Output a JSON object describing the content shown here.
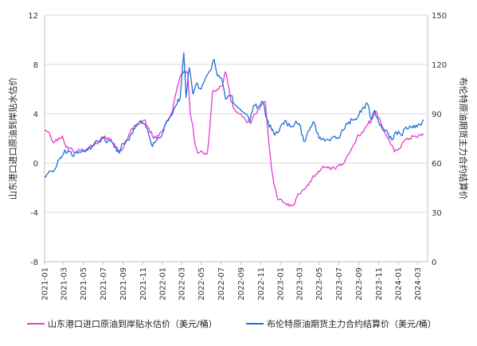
{
  "chart_data": {
    "type": "line",
    "title": "",
    "xlabel": "",
    "ylabel_left": "山东港口进口原油到岸贴水估价",
    "ylabel_right": "布伦特原油期货主力合约结算价",
    "x_tick_labels": [
      "2021-01",
      "2021-03",
      "2021-05",
      "2021-07",
      "2021-09",
      "2021-11",
      "2022-01",
      "2022-03",
      "2022-05",
      "2022-07",
      "2022-09",
      "2022-11",
      "2023-01",
      "2023-03",
      "2023-05",
      "2023-07",
      "2023-09",
      "2023-11",
      "2024-01",
      "2024-03"
    ],
    "ylim_left": [
      -8,
      12
    ],
    "yticks_left": [
      -8,
      -4,
      0,
      4,
      8,
      12
    ],
    "ylim_right": [
      0,
      150
    ],
    "yticks_right": [
      0,
      30,
      60,
      90,
      120,
      150
    ],
    "grid": "horizontal",
    "legend_position": "bottom",
    "series": [
      {
        "name": "山东港口进口原油到岸贴水估价（美元/桶）",
        "axis": "left",
        "color": "#e63ad3",
        "points": [
          [
            "2021-01-01",
            2.6
          ],
          [
            "2021-01-15",
            2.5
          ],
          [
            "2021-01-25",
            1.8
          ],
          [
            "2021-02-10",
            1.8
          ],
          [
            "2021-02-25",
            2.2
          ],
          [
            "2021-03-05",
            1.5
          ],
          [
            "2021-03-20",
            1.2
          ],
          [
            "2021-04-05",
            0.8
          ],
          [
            "2021-04-20",
            1.1
          ],
          [
            "2021-05-05",
            1.0
          ],
          [
            "2021-05-20",
            1.3
          ],
          [
            "2021-06-05",
            1.5
          ],
          [
            "2021-06-20",
            1.8
          ],
          [
            "2021-07-05",
            2.2
          ],
          [
            "2021-07-20",
            1.9
          ],
          [
            "2021-08-05",
            1.6
          ],
          [
            "2021-08-20",
            0.9
          ],
          [
            "2021-09-05",
            1.5
          ],
          [
            "2021-09-20",
            2.4
          ],
          [
            "2021-10-05",
            3.0
          ],
          [
            "2021-10-20",
            3.2
          ],
          [
            "2021-11-05",
            3.5
          ],
          [
            "2021-11-20",
            2.8
          ],
          [
            "2021-12-05",
            2.0
          ],
          [
            "2021-12-20",
            2.2
          ],
          [
            "2022-01-05",
            2.8
          ],
          [
            "2022-01-20",
            3.6
          ],
          [
            "2022-02-01",
            4.2
          ],
          [
            "2022-02-10",
            5.5
          ],
          [
            "2022-02-20",
            6.5
          ],
          [
            "2022-03-01",
            7.2
          ],
          [
            "2022-03-10",
            7.5
          ],
          [
            "2022-03-20",
            7.3
          ],
          [
            "2022-03-28",
            4.0
          ],
          [
            "2022-04-05",
            3.0
          ],
          [
            "2022-04-12",
            1.5
          ],
          [
            "2022-04-20",
            0.8
          ],
          [
            "2022-05-05",
            0.9
          ],
          [
            "2022-05-20",
            0.8
          ],
          [
            "2022-05-28",
            3.0
          ],
          [
            "2022-06-05",
            5.8
          ],
          [
            "2022-06-20",
            6.0
          ],
          [
            "2022-07-05",
            6.3
          ],
          [
            "2022-07-15",
            7.4
          ],
          [
            "2022-07-22",
            6.5
          ],
          [
            "2022-08-01",
            5.0
          ],
          [
            "2022-08-15",
            4.2
          ],
          [
            "2022-09-01",
            4.0
          ],
          [
            "2022-09-15",
            3.5
          ],
          [
            "2022-10-01",
            3.2
          ],
          [
            "2022-10-15",
            4.0
          ],
          [
            "2022-11-01",
            4.6
          ],
          [
            "2022-11-15",
            5.0
          ],
          [
            "2022-11-25",
            2.0
          ],
          [
            "2022-12-05",
            -0.5
          ],
          [
            "2022-12-15",
            -2.0
          ],
          [
            "2022-12-25",
            -3.0
          ],
          [
            "2023-01-10",
            -3.2
          ],
          [
            "2023-01-25",
            -3.3
          ],
          [
            "2023-02-10",
            -3.4
          ],
          [
            "2023-02-25",
            -2.5
          ],
          [
            "2023-03-10",
            -2.2
          ],
          [
            "2023-03-25",
            -1.8
          ],
          [
            "2023-04-10",
            -1.2
          ],
          [
            "2023-04-25",
            -0.9
          ],
          [
            "2023-05-10",
            -0.4
          ],
          [
            "2023-05-25",
            -0.3
          ],
          [
            "2023-06-10",
            -0.4
          ],
          [
            "2023-06-25",
            -0.3
          ],
          [
            "2023-07-10",
            -0.1
          ],
          [
            "2023-07-25",
            0.5
          ],
          [
            "2023-08-10",
            1.2
          ],
          [
            "2023-08-25",
            2.0
          ],
          [
            "2023-09-10",
            2.5
          ],
          [
            "2023-09-25",
            3.0
          ],
          [
            "2023-10-10",
            3.5
          ],
          [
            "2023-10-25",
            4.2
          ],
          [
            "2023-11-05",
            3.6
          ],
          [
            "2023-11-20",
            2.5
          ],
          [
            "2023-12-05",
            1.8
          ],
          [
            "2023-12-20",
            0.9
          ],
          [
            "2024-01-05",
            1.2
          ],
          [
            "2024-01-20",
            1.8
          ],
          [
            "2024-02-05",
            2.0
          ],
          [
            "2024-02-20",
            2.2
          ],
          [
            "2024-03-05",
            2.3
          ],
          [
            "2024-03-20",
            2.3
          ]
        ]
      },
      {
        "name": "布伦特原油期货主力合约结算价（美元/桶）",
        "axis": "right",
        "color": "#1e6fd9",
        "points": [
          [
            "2021-01-01",
            52
          ],
          [
            "2021-01-15",
            55
          ],
          [
            "2021-02-01",
            56
          ],
          [
            "2021-02-15",
            62
          ],
          [
            "2021-03-01",
            66
          ],
          [
            "2021-03-15",
            68
          ],
          [
            "2021-04-01",
            64
          ],
          [
            "2021-04-15",
            66
          ],
          [
            "2021-05-01",
            68
          ],
          [
            "2021-05-15",
            68
          ],
          [
            "2021-06-01",
            71
          ],
          [
            "2021-06-15",
            73
          ],
          [
            "2021-07-01",
            75
          ],
          [
            "2021-07-15",
            73
          ],
          [
            "2021-08-01",
            72
          ],
          [
            "2021-08-20",
            66
          ],
          [
            "2021-09-01",
            72
          ],
          [
            "2021-09-15",
            74
          ],
          [
            "2021-10-01",
            78
          ],
          [
            "2021-10-15",
            84
          ],
          [
            "2021-11-01",
            84
          ],
          [
            "2021-11-15",
            81
          ],
          [
            "2021-12-01",
            70
          ],
          [
            "2021-12-15",
            74
          ],
          [
            "2022-01-01",
            78
          ],
          [
            "2022-01-15",
            86
          ],
          [
            "2022-02-01",
            90
          ],
          [
            "2022-02-15",
            96
          ],
          [
            "2022-02-25",
            100
          ],
          [
            "2022-03-08",
            127
          ],
          [
            "2022-03-15",
            100
          ],
          [
            "2022-03-25",
            118
          ],
          [
            "2022-04-05",
            102
          ],
          [
            "2022-04-15",
            108
          ],
          [
            "2022-05-01",
            105
          ],
          [
            "2022-05-15",
            112
          ],
          [
            "2022-06-01",
            117
          ],
          [
            "2022-06-10",
            123
          ],
          [
            "2022-06-20",
            113
          ],
          [
            "2022-07-01",
            112
          ],
          [
            "2022-07-15",
            99
          ],
          [
            "2022-08-01",
            101
          ],
          [
            "2022-08-15",
            95
          ],
          [
            "2022-09-01",
            92
          ],
          [
            "2022-09-15",
            90
          ],
          [
            "2022-09-28",
            85
          ],
          [
            "2022-10-10",
            95
          ],
          [
            "2022-10-25",
            94
          ],
          [
            "2022-11-08",
            97
          ],
          [
            "2022-11-20",
            87
          ],
          [
            "2022-12-05",
            80
          ],
          [
            "2022-12-15",
            77
          ],
          [
            "2023-01-01",
            82
          ],
          [
            "2023-01-15",
            86
          ],
          [
            "2023-02-01",
            82
          ],
          [
            "2023-02-15",
            84
          ],
          [
            "2023-03-01",
            84
          ],
          [
            "2023-03-15",
            73
          ],
          [
            "2023-04-01",
            80
          ],
          [
            "2023-04-15",
            85
          ],
          [
            "2023-05-01",
            75
          ],
          [
            "2023-05-15",
            75
          ],
          [
            "2023-06-01",
            74
          ],
          [
            "2023-06-15",
            76
          ],
          [
            "2023-07-01",
            75
          ],
          [
            "2023-07-15",
            80
          ],
          [
            "2023-08-01",
            85
          ],
          [
            "2023-08-15",
            86
          ],
          [
            "2023-09-01",
            89
          ],
          [
            "2023-09-15",
            94
          ],
          [
            "2023-09-28",
            96
          ],
          [
            "2023-10-10",
            86
          ],
          [
            "2023-10-20",
            92
          ],
          [
            "2023-11-01",
            85
          ],
          [
            "2023-11-15",
            80
          ],
          [
            "2023-12-01",
            78
          ],
          [
            "2023-12-12",
            74
          ],
          [
            "2023-12-25",
            79
          ],
          [
            "2024-01-10",
            77
          ],
          [
            "2024-01-25",
            82
          ],
          [
            "2024-02-10",
            82
          ],
          [
            "2024-02-25",
            83
          ],
          [
            "2024-03-10",
            83
          ],
          [
            "2024-03-20",
            86
          ]
        ]
      }
    ],
    "legend": [
      {
        "label": "山东港口进口原油到岸贴水估价（美元/桶）",
        "color": "#e63ad3"
      },
      {
        "label": "布伦特原油期货主力合约结算价（美元/桶）",
        "color": "#1e6fd9"
      }
    ]
  }
}
